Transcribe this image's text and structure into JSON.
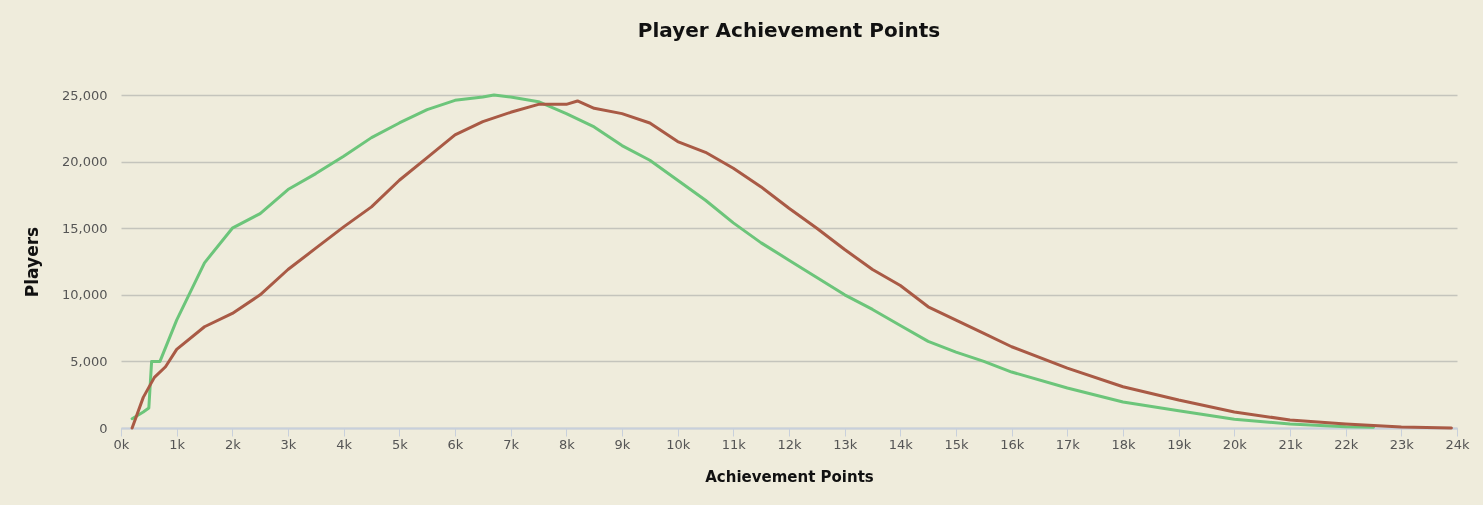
{
  "chart_data": {
    "type": "line",
    "title": "Player Achievement Points",
    "xlabel": "Achievement Points",
    "ylabel": "Players",
    "xlim": [
      0,
      24000
    ],
    "xticks": [
      {
        "value": 0,
        "label": "0k"
      },
      {
        "value": 1000,
        "label": "1k"
      },
      {
        "value": 2000,
        "label": "2k"
      },
      {
        "value": 3000,
        "label": "3k"
      },
      {
        "value": 4000,
        "label": "4k"
      },
      {
        "value": 5000,
        "label": "5k"
      },
      {
        "value": 6000,
        "label": "6k"
      },
      {
        "value": 7000,
        "label": "7k"
      },
      {
        "value": 8000,
        "label": "8k"
      },
      {
        "value": 9000,
        "label": "9k"
      },
      {
        "value": 10000,
        "label": "10k"
      },
      {
        "value": 11000,
        "label": "11k"
      },
      {
        "value": 12000,
        "label": "12k"
      },
      {
        "value": 13000,
        "label": "13k"
      },
      {
        "value": 14000,
        "label": "14k"
      },
      {
        "value": 15000,
        "label": "15k"
      },
      {
        "value": 16000,
        "label": "16k"
      },
      {
        "value": 17000,
        "label": "17k"
      },
      {
        "value": 18000,
        "label": "18k"
      },
      {
        "value": 19000,
        "label": "19k"
      },
      {
        "value": 20000,
        "label": "20k"
      },
      {
        "value": 21000,
        "label": "21k"
      },
      {
        "value": 22000,
        "label": "22k"
      },
      {
        "value": 23000,
        "label": "23k"
      },
      {
        "value": 24000,
        "label": "24k"
      }
    ],
    "ylim": [
      0,
      25000
    ],
    "yticks": [
      0,
      {
        "value": 5000,
        "label": "5,000"
      },
      {
        "value": 10000,
        "label": "10,000"
      },
      {
        "value": 15000,
        "label": "15,000"
      },
      {
        "value": 20000,
        "label": "20,000"
      },
      {
        "value": 25000,
        "label": "25,000"
      }
    ],
    "grid": "y",
    "legend": false,
    "marker": "none",
    "line_style": "solid",
    "series": [
      {
        "color": "#6cc57a",
        "x": [
          200,
          400,
          500,
          550,
          700,
          1000,
          1500,
          2000,
          2500,
          3000,
          3500,
          4000,
          4500,
          5000,
          5500,
          6000,
          6500,
          6700,
          7000,
          7500,
          8000,
          8500,
          9000,
          9500,
          10000,
          10500,
          11000,
          11500,
          12000,
          12500,
          13000,
          13500,
          14000,
          14500,
          15000,
          15500,
          16000,
          17000,
          18000,
          19000,
          20000,
          21000,
          22000,
          22500
        ],
        "values": [
          700,
          1200,
          1500,
          5000,
          5000,
          8100,
          12400,
          15000,
          16100,
          17900,
          19100,
          20400,
          21800,
          22900,
          23900,
          24600,
          24850,
          25000,
          24850,
          24500,
          23600,
          22600,
          21200,
          20100,
          18600,
          17100,
          15400,
          13900,
          12600,
          11300,
          10000,
          8900,
          7700,
          6500,
          5700,
          5000,
          4200,
          3000,
          1950,
          1300,
          650,
          300,
          100,
          50
        ]
      },
      {
        "color": "#a95a45",
        "x": [
          200,
          400,
          600,
          800,
          1000,
          1500,
          2000,
          2500,
          3000,
          3500,
          4000,
          4500,
          5000,
          5500,
          6000,
          6500,
          7000,
          7500,
          8000,
          8200,
          8500,
          9000,
          9500,
          10000,
          10500,
          11000,
          11500,
          12000,
          12500,
          13000,
          13500,
          14000,
          14500,
          15000,
          15500,
          16000,
          17000,
          18000,
          19000,
          20000,
          21000,
          22000,
          23000,
          23900
        ],
        "values": [
          0,
          2300,
          3800,
          4600,
          5900,
          7600,
          8600,
          10000,
          11900,
          13500,
          15100,
          16600,
          18600,
          20300,
          22000,
          23000,
          23700,
          24300,
          24300,
          24550,
          24000,
          23600,
          22900,
          21500,
          20700,
          19500,
          18100,
          16500,
          15000,
          13400,
          11900,
          10700,
          9100,
          8100,
          7100,
          6100,
          4500,
          3100,
          2100,
          1200,
          600,
          300,
          80,
          0
        ]
      }
    ]
  }
}
